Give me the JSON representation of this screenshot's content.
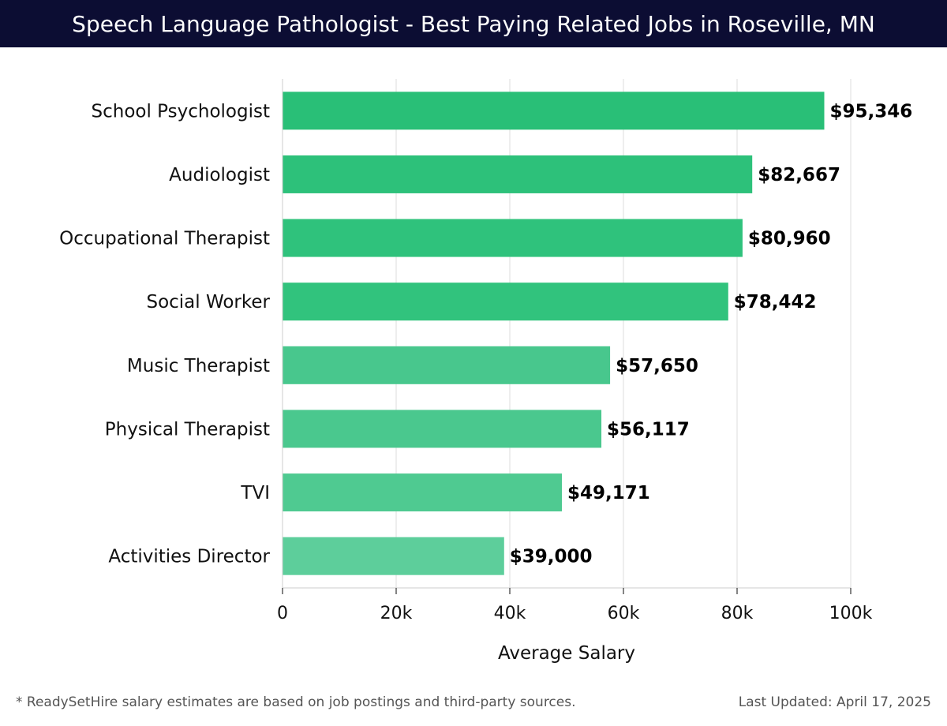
{
  "header": {
    "title": "Speech Language Pathologist - Best Paying Related Jobs in Roseville, MN"
  },
  "chart_data": {
    "type": "bar",
    "orientation": "horizontal",
    "categories": [
      "School Psychologist",
      "Audiologist",
      "Occupational Therapist",
      "Social Worker",
      "Music Therapist",
      "Physical Therapist",
      "TVI",
      "Activities Director"
    ],
    "values": [
      95346,
      82667,
      80960,
      78442,
      57650,
      56117,
      49171,
      39000
    ],
    "value_labels": [
      "$95,346",
      "$82,667",
      "$80,960",
      "$78,442",
      "$57,650",
      "$56,117",
      "$49,171",
      "$39,000"
    ],
    "xlabel": "Average Salary",
    "ylabel": "",
    "xlim": [
      0,
      100000
    ],
    "ticks": [
      0,
      20000,
      40000,
      60000,
      80000,
      100000
    ],
    "tick_labels": [
      "0",
      "20k",
      "40k",
      "60k",
      "80k",
      "100k"
    ],
    "grid": true,
    "bar_colors": [
      "#29bf77",
      "#2dc17a",
      "#2fc27c",
      "#31c37d",
      "#48c78d",
      "#4ac88e",
      "#4fca91",
      "#5dce9b"
    ]
  },
  "footer": {
    "note": "* ReadySetHire salary estimates are based on job postings and third-party sources.",
    "updated": "Last Updated: April 17, 2025"
  }
}
